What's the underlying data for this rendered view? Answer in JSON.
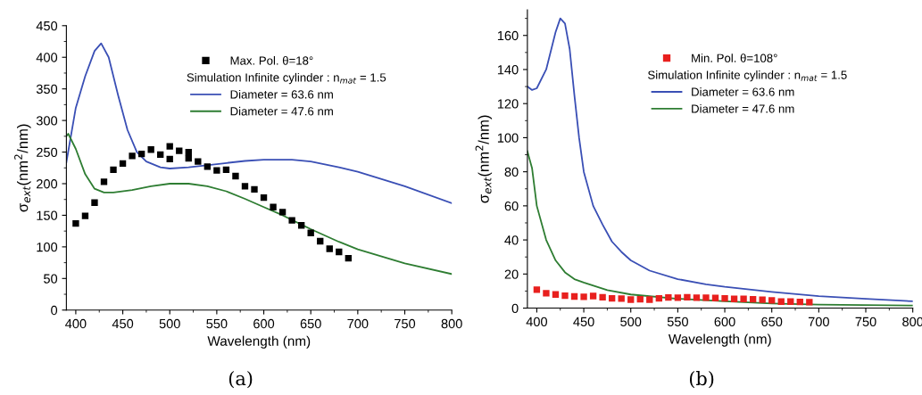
{
  "chart_data": [
    {
      "type": "line",
      "xlabel": "Wavelength (nm)",
      "ylabel": "σ$_{ext}$(nm$^{2}$/nm)",
      "legend_title": "Simulation Infinite cylinder : n$_{mat}$ = 1.5",
      "legend": "top right",
      "annotations": [
        "(a)"
      ],
      "xlim": [
        390,
        800
      ],
      "xticks": [
        400,
        450,
        500,
        550,
        600,
        650,
        700,
        750,
        800
      ],
      "ylim": [
        0,
        450
      ],
      "yticks": [
        0,
        50,
        100,
        150,
        200,
        250,
        300,
        350,
        400,
        450
      ],
      "grid": false,
      "series": [
        {
          "name": "Max. Pol. θ=18°",
          "type": "scatter",
          "marker": "square",
          "color": "#000000",
          "x": [
            400,
            410,
            420,
            430,
            440,
            450,
            460,
            470,
            480,
            490,
            500,
            500,
            510,
            520,
            520,
            530,
            540,
            550,
            560,
            570,
            580,
            590,
            600,
            610,
            620,
            630,
            640,
            650,
            660,
            670,
            680,
            690
          ],
          "values": [
            137,
            149,
            170,
            203,
            222,
            232,
            244,
            247,
            254,
            246,
            259,
            239,
            252,
            250,
            240,
            235,
            227,
            221,
            222,
            212,
            196,
            191,
            178,
            163,
            155,
            142,
            134,
            122,
            109,
            97,
            92,
            82
          ]
        },
        {
          "name": "Diameter = 63.6 nm",
          "color": "#3a4fb5",
          "x": [
            390,
            400,
            410,
            420,
            427,
            435,
            445,
            455,
            465,
            475,
            490,
            500,
            520,
            550,
            580,
            600,
            630,
            650,
            680,
            700,
            750,
            800
          ],
          "values": [
            234,
            320,
            370,
            410,
            422,
            400,
            340,
            285,
            250,
            235,
            226,
            224,
            226,
            231,
            236,
            238,
            238,
            235,
            226,
            219,
            196,
            169
          ]
        },
        {
          "name": "Diameter = 47.6 nm",
          "color": "#2e7d32",
          "x": [
            390,
            392,
            400,
            410,
            420,
            430,
            440,
            460,
            480,
            500,
            520,
            540,
            560,
            580,
            600,
            620,
            650,
            680,
            700,
            750,
            800
          ],
          "values": [
            275,
            279,
            255,
            215,
            192,
            186,
            186,
            190,
            196,
            200,
            200,
            196,
            188,
            176,
            163,
            150,
            128,
            108,
            96,
            74,
            57
          ]
        }
      ]
    },
    {
      "type": "line",
      "xlabel": "Wavelength (nm)",
      "ylabel": "σ$_{ext}$(nm$^{2}$/nm)",
      "legend_title": "Simulation Infinite cylinder : n$_{mat}$ = 1.5",
      "legend": "right",
      "annotations": [
        "(b)"
      ],
      "xlim": [
        390,
        800
      ],
      "xticks": [
        400,
        450,
        500,
        550,
        600,
        650,
        700,
        750,
        800
      ],
      "ylim": [
        0,
        175
      ],
      "yticks": [
        0,
        20,
        40,
        60,
        80,
        100,
        120,
        140,
        160
      ],
      "grid": false,
      "series": [
        {
          "name": "Min. Pol. θ=108°",
          "type": "scatter",
          "marker": "square",
          "color": "#e8201e",
          "x": [
            400,
            410,
            420,
            430,
            440,
            450,
            460,
            470,
            480,
            490,
            500,
            510,
            520,
            530,
            540,
            550,
            560,
            570,
            580,
            590,
            600,
            610,
            620,
            630,
            640,
            650,
            660,
            670,
            680,
            690
          ],
          "values": [
            10.8,
            8.7,
            8.0,
            7.3,
            6.8,
            6.6,
            7.1,
            6.4,
            5.7,
            5.6,
            5.0,
            5.2,
            5.0,
            5.7,
            6.2,
            6.1,
            6.4,
            6.1,
            6.1,
            5.9,
            5.7,
            5.4,
            5.4,
            5.2,
            4.9,
            4.5,
            3.8,
            3.8,
            3.6,
            3.5
          ]
        },
        {
          "name": "Diameter = 63.6 nm",
          "color": "#3a4fb5",
          "x": [
            390,
            395,
            400,
            410,
            420,
            425,
            430,
            435,
            440,
            445,
            450,
            460,
            470,
            480,
            490,
            500,
            520,
            550,
            580,
            600,
            650,
            700,
            750,
            800
          ],
          "values": [
            130,
            128,
            129,
            140,
            162,
            170,
            167,
            152,
            125,
            100,
            80,
            60,
            49,
            39,
            33,
            28,
            22,
            17,
            14,
            12.5,
            9.5,
            7,
            5.5,
            4
          ]
        },
        {
          "name": "Diameter = 47.6 nm",
          "color": "#2e7d32",
          "x": [
            390,
            395,
            400,
            410,
            420,
            430,
            440,
            450,
            475,
            500,
            550,
            600,
            650,
            700,
            800
          ],
          "values": [
            92,
            82,
            60,
            40,
            28,
            21,
            17,
            15,
            10.5,
            8,
            5.5,
            4,
            2.7,
            2,
            1.5
          ]
        }
      ]
    }
  ]
}
